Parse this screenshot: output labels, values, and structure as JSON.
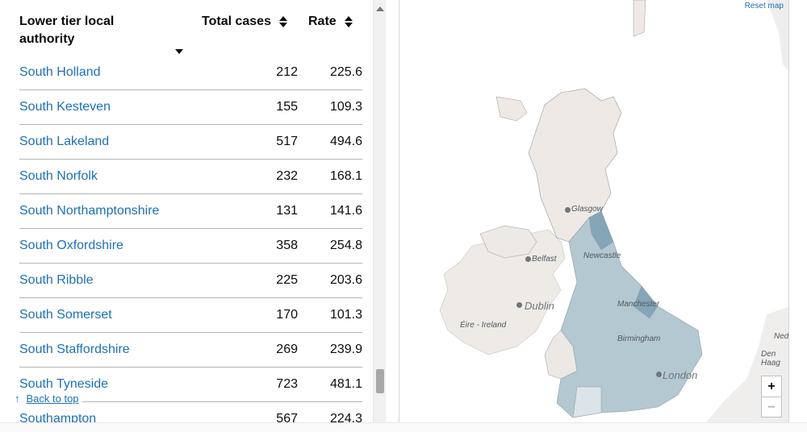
{
  "table": {
    "headers": {
      "name": "Lower tier local authority",
      "cases": "Total cases",
      "rate": "Rate"
    },
    "rows": [
      {
        "name": "South Holland",
        "cases": "212",
        "rate": "225.6"
      },
      {
        "name": "South Kesteven",
        "cases": "155",
        "rate": "109.3"
      },
      {
        "name": "South Lakeland",
        "cases": "517",
        "rate": "494.6"
      },
      {
        "name": "South Norfolk",
        "cases": "232",
        "rate": "168.1"
      },
      {
        "name": "South Northamptonshire",
        "cases": "131",
        "rate": "141.6"
      },
      {
        "name": "South Oxfordshire",
        "cases": "358",
        "rate": "254.8"
      },
      {
        "name": "South Ribble",
        "cases": "225",
        "rate": "203.6"
      },
      {
        "name": "South Somerset",
        "cases": "170",
        "rate": "101.3"
      },
      {
        "name": "South Staffordshire",
        "cases": "269",
        "rate": "239.9"
      },
      {
        "name": "South Tyneside",
        "cases": "723",
        "rate": "481.1"
      },
      {
        "name": "Southampton",
        "cases": "567",
        "rate": "224.3"
      }
    ],
    "back_to_top": "Back to top"
  },
  "map": {
    "reset_label": "Reset map",
    "zoom_in": "+",
    "zoom_out": "−",
    "labels": {
      "glasgow": "Glasgow",
      "belfast": "Belfast",
      "dublin": "Dublin",
      "eire": "Éire - Ireland",
      "london": "London",
      "newcastle": "Newcastle",
      "manchester": "Manchester",
      "birmingham": "Birmingham",
      "den_haag": "Den Haag",
      "ned": "Nede"
    },
    "colors": {
      "sea": "#ffffff",
      "land_other": "#efeeec",
      "scotland": "#efe9e5",
      "ireland": "#eeeae6",
      "england_low": "#dbe4e8",
      "england_mid": "#b3c8d1",
      "england_high": "#84a6b6",
      "boundary": "#8e9ba4"
    }
  }
}
